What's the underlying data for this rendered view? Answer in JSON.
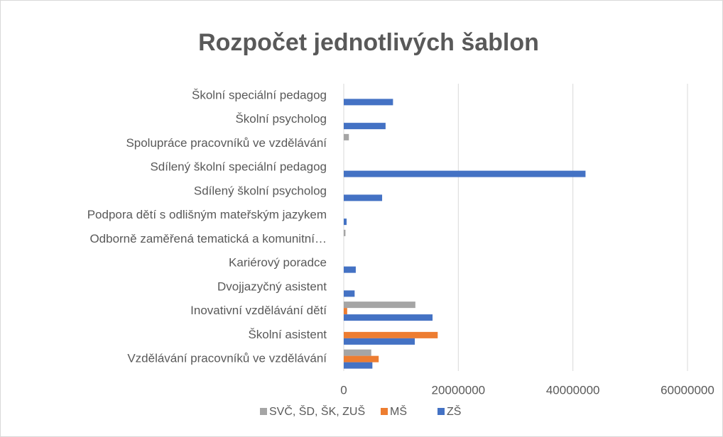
{
  "chart_data": {
    "type": "hbar",
    "title": "Rozpočet jednotlivých šablon",
    "categories": [
      "Vzdělávání pracovníků ve vzdělávání",
      "Školní asistent",
      "Inovativní vzdělávání dětí",
      "Dvojjazyčný asistent",
      "Kariérový poradce",
      "Odborně zaměřená tematická a komunitní…",
      "Podpora dětí s odlišným mateřským jazykem",
      "Sdílený školní psycholog",
      "Sdílený školní speciální pedagog",
      "Spolupráce pracovníků ve vzdělávání",
      "Školní psycholog",
      "Školní speciální pedagog"
    ],
    "series": [
      {
        "name": "SVČ, ŠD, ŠK, ZUŠ",
        "color": "#a5a5a5",
        "values": [
          4800000,
          0,
          12500000,
          0,
          0,
          300000,
          0,
          0,
          0,
          900000,
          0,
          0
        ]
      },
      {
        "name": "MŠ",
        "color": "#ed7d31",
        "values": [
          6100000,
          16400000,
          600000,
          0,
          0,
          0,
          0,
          0,
          0,
          0,
          0,
          0
        ]
      },
      {
        "name": "ZŠ",
        "color": "#4472c4",
        "values": [
          5000000,
          12400000,
          15500000,
          1900000,
          2100000,
          0,
          500000,
          6700000,
          42200000,
          0,
          7300000,
          8600000
        ]
      }
    ],
    "xlim": [
      0,
      60000000
    ],
    "xticks": [
      0,
      20000000,
      40000000,
      60000000
    ],
    "grid": true,
    "legend": "bottom"
  }
}
